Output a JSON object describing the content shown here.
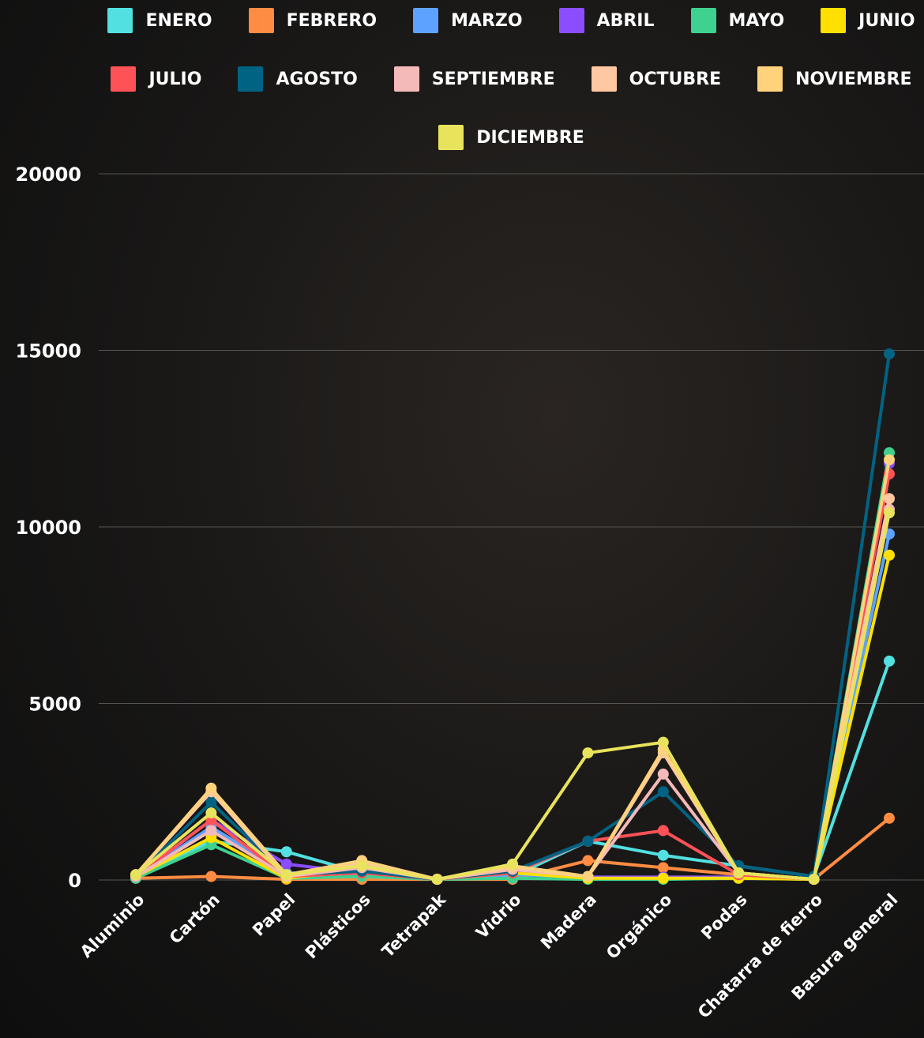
{
  "chart_data": {
    "type": "line",
    "categories": [
      "Aluminio",
      "Cartón",
      "Papel",
      "Plásticos",
      "Tetrapak",
      "Vidrio",
      "Madera",
      "Orgánico",
      "Podas",
      "Chatarra de fierro",
      "Basura general"
    ],
    "series": [
      {
        "name": "ENERO",
        "color": "#52e0e0",
        "values": [
          50,
          1100,
          800,
          200,
          20,
          100,
          1100,
          700,
          400,
          100,
          6200
        ]
      },
      {
        "name": "FEBRERO",
        "color": "#ff8c42",
        "values": [
          50,
          100,
          20,
          20,
          20,
          20,
          550,
          350,
          150,
          20,
          1750
        ]
      },
      {
        "name": "MARZO",
        "color": "#5ea2ff",
        "values": [
          80,
          1500,
          200,
          150,
          20,
          150,
          80,
          80,
          80,
          20,
          9800
        ]
      },
      {
        "name": "ABRIL",
        "color": "#8b4dff",
        "values": [
          80,
          1700,
          450,
          200,
          20,
          200,
          80,
          80,
          80,
          20,
          11800
        ]
      },
      {
        "name": "MAYO",
        "color": "#3fd18f",
        "values": [
          50,
          1000,
          50,
          100,
          20,
          50,
          20,
          20,
          50,
          20,
          12100
        ]
      },
      {
        "name": "JUNIO",
        "color": "#ffe000",
        "values": [
          100,
          1200,
          50,
          300,
          20,
          200,
          50,
          50,
          50,
          20,
          9200
        ]
      },
      {
        "name": "JULIO",
        "color": "#ff5257",
        "values": [
          100,
          1700,
          100,
          200,
          20,
          200,
          1100,
          1400,
          150,
          20,
          11500
        ]
      },
      {
        "name": "AGOSTO",
        "color": "#006383",
        "values": [
          100,
          2200,
          150,
          250,
          20,
          250,
          1100,
          2500,
          400,
          100,
          14900
        ]
      },
      {
        "name": "SEPTIEMBRE",
        "color": "#f4b9b9",
        "values": [
          100,
          1400,
          100,
          350,
          20,
          300,
          100,
          3000,
          200,
          20,
          10500
        ]
      },
      {
        "name": "OCTUBRE",
        "color": "#ffc8a2",
        "values": [
          150,
          2500,
          100,
          500,
          20,
          350,
          100,
          3600,
          200,
          20,
          10800
        ]
      },
      {
        "name": "NOVIEMBRE",
        "color": "#ffd27c",
        "values": [
          150,
          2600,
          150,
          550,
          20,
          400,
          100,
          3700,
          200,
          20,
          11900
        ]
      },
      {
        "name": "DICIEMBRE",
        "color": "#e8e35c",
        "values": [
          150,
          1900,
          150,
          400,
          20,
          450,
          3600,
          3900,
          200,
          20,
          10400
        ]
      }
    ],
    "ylim": [
      0,
      20000
    ],
    "yticks": [
      0,
      5000,
      10000,
      15000,
      20000
    ],
    "grid": true
  }
}
